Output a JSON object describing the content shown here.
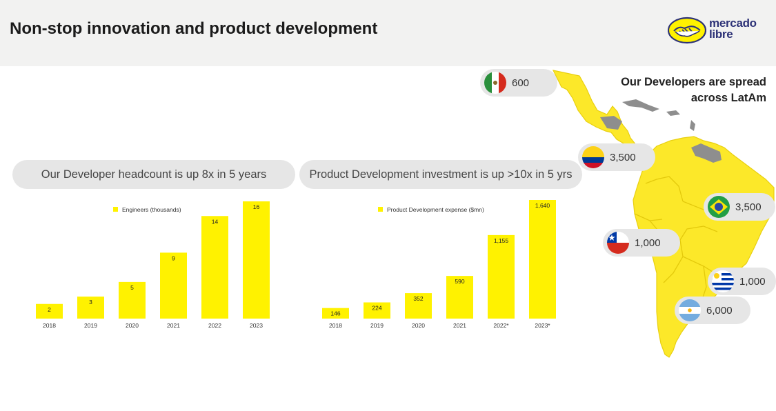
{
  "header": {
    "title": "Non-stop innovation and product development",
    "logo_lines": [
      "mercado",
      "libre"
    ]
  },
  "map_section": {
    "caption_lines": [
      "Our Developers are spread",
      "across LatAm"
    ],
    "countries": [
      {
        "flag": "mexico-flag-icon",
        "value": "600"
      },
      {
        "flag": "colombia-flag-icon",
        "value": "3,500"
      },
      {
        "flag": "brazil-flag-icon",
        "value": "3,500"
      },
      {
        "flag": "chile-flag-icon",
        "value": "1,000"
      },
      {
        "flag": "uruguay-flag-icon",
        "value": "1,000"
      },
      {
        "flag": "argentina-flag-icon",
        "value": "6,000"
      }
    ]
  },
  "colors": {
    "bar": "#fff200",
    "map": "#fce829",
    "map_border": "#e8cf10",
    "pill": "#e6e6e6",
    "logo_navy": "#2d3277"
  },
  "chart_data": [
    {
      "type": "bar",
      "title": "Our Developer headcount is up 8x in 5 years",
      "categories": [
        "2018",
        "2019",
        "2020",
        "2021",
        "2022",
        "2023"
      ],
      "series": [
        {
          "name": "Engineers (thousands)",
          "values": [
            2,
            3,
            5,
            9,
            14,
            16
          ],
          "labels": [
            "2",
            "3",
            "5",
            "9",
            "14",
            "16"
          ]
        }
      ],
      "ylim": [
        0,
        16
      ],
      "legend": "top",
      "grid": false
    },
    {
      "type": "bar",
      "title": "Product Development investment is up >10x in 5 yrs",
      "categories": [
        "2018",
        "2019",
        "2020",
        "2021",
        "2022*",
        "2023*"
      ],
      "series": [
        {
          "name": "Product Development expense ($mn)",
          "values": [
            146,
            224,
            352,
            590,
            1155,
            1640
          ],
          "labels": [
            "146",
            "224",
            "352",
            "590",
            "1,155",
            "1,640"
          ]
        }
      ],
      "ylim": [
        0,
        1640
      ],
      "legend": "top",
      "grid": false
    }
  ]
}
